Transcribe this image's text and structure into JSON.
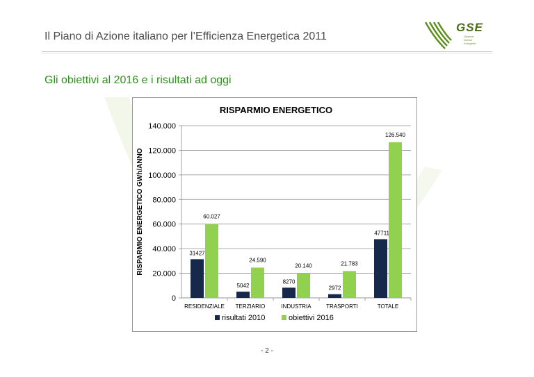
{
  "header": {
    "title": "Il Piano di Azione italiano per l’Efficienza Energetica 2011",
    "logo": {
      "text": "GSE",
      "sub1": "Gestore",
      "sub2": "Servizi",
      "sub3": "Energetici"
    }
  },
  "subtitle": "Gli obiettivi al 2016 e i risultati ad oggi",
  "colors": {
    "series1": "#17294a",
    "series2": "#92d050",
    "title_green": "#2f8f1f",
    "logo_green": "#5a8c1e"
  },
  "chart_data": {
    "type": "bar",
    "title": "RISPARMIO ENERGETICO",
    "ylabel": "RISPARMIO ENERGETICO GWh/ANNO",
    "xlabel": "",
    "categories": [
      "RESIDENZIALE",
      "TERZIARIO",
      "INDUSTRIA",
      "TRASPORTI",
      "TOTALE"
    ],
    "ylim": [
      0,
      140000
    ],
    "yticks": [
      0,
      20000,
      40000,
      60000,
      80000,
      100000,
      120000,
      140000
    ],
    "ytick_labels": [
      "0",
      "20.000",
      "40.000",
      "60.000",
      "80.000",
      "100.000",
      "120.000",
      "140.000"
    ],
    "grid": true,
    "legend_position": "bottom",
    "series": [
      {
        "name": "risultati 2010",
        "values": [
          31427,
          5042,
          8270,
          2972,
          47711
        ],
        "labels": [
          "31427",
          "5042",
          "8270",
          "2972",
          "47711"
        ]
      },
      {
        "name": "obiettivi 2016",
        "values": [
          60027,
          24590,
          20140,
          21783,
          126540
        ],
        "labels": [
          "60.027",
          "24.590",
          "20.140",
          "21.783",
          "126.540"
        ]
      }
    ]
  },
  "page_number": "- 2 -"
}
